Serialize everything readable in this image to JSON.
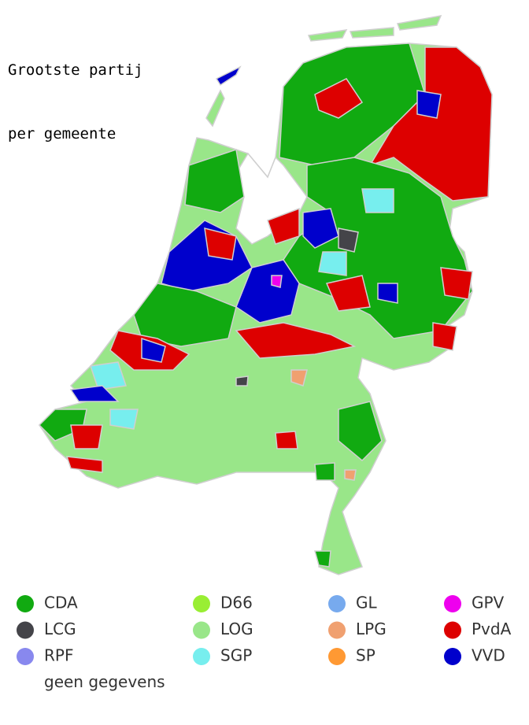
{
  "title": [
    "Grootste partij",
    "per gemeente"
  ],
  "legend": {
    "columns": [
      [
        {
          "name": "CDA",
          "color": "#11aa11"
        },
        {
          "name": "LCG",
          "color": "#444449"
        },
        {
          "name": "RPF",
          "color": "#8888ee"
        },
        {
          "name": "geen gegevens",
          "color": "#ffffff"
        }
      ],
      [
        {
          "name": "D66",
          "color": "#99ee33"
        },
        {
          "name": "LOG",
          "color": "#99e689"
        },
        {
          "name": "SGP",
          "color": "#77eeee"
        }
      ],
      [
        {
          "name": "GL",
          "color": "#77aaee"
        },
        {
          "name": "LPG",
          "color": "#f0a070"
        },
        {
          "name": "SP",
          "color": "#ff9933"
        }
      ],
      [
        {
          "name": "GPV",
          "color": "#ee00ee"
        },
        {
          "name": "PvdA",
          "color": "#dd0000"
        },
        {
          "name": "VVD",
          "color": "#0000cc"
        }
      ]
    ]
  }
}
